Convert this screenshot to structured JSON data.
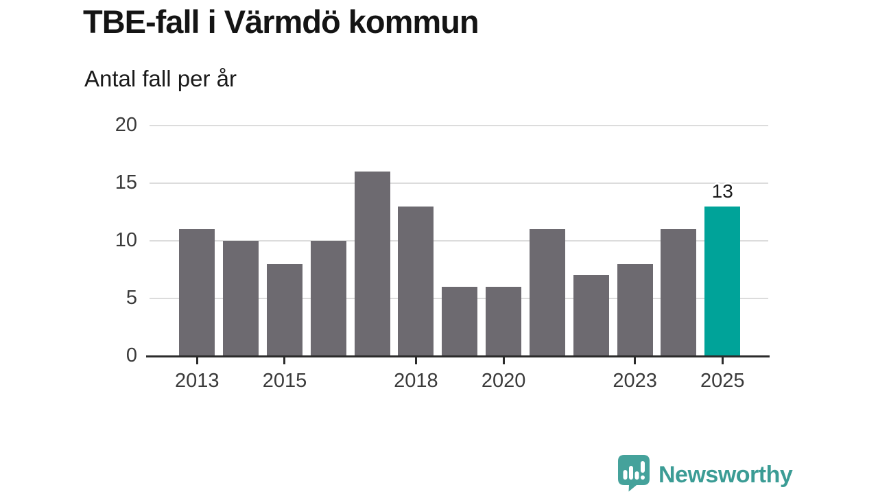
{
  "chart": {
    "title": "TBE-fall i Värmdö kommun",
    "subtitle": "Antal fall per år"
  },
  "footer": {
    "brand": "Newsworthy"
  },
  "colors": {
    "bar": "#6d6a70",
    "highlight": "#00a399",
    "grid": "#dcdcdc",
    "axis": "#2b2b2b",
    "tick_label": "#3a3a3a",
    "annotation": "#1a1a1a",
    "logo": "#3b9c95"
  },
  "chart_data": {
    "type": "bar",
    "title": "TBE-fall i Värmdö kommun",
    "subtitle": "Antal fall per år",
    "xlabel": "",
    "ylabel": "Antal fall per år",
    "categories": [
      "2013",
      "2014",
      "2015",
      "2016",
      "2017",
      "2018",
      "2019",
      "2020",
      "2021",
      "2022",
      "2023",
      "2024",
      "2025"
    ],
    "values": [
      11,
      10,
      8,
      10,
      16,
      13,
      6,
      6,
      11,
      7,
      8,
      11,
      13
    ],
    "highlight_category": "2025",
    "annotations": [
      {
        "category": "2025",
        "text": "13"
      }
    ],
    "x_tick_labels": [
      "2013",
      "2015",
      "2018",
      "2020",
      "2023",
      "2025"
    ],
    "y_ticks": [
      0,
      5,
      10,
      15,
      20
    ],
    "ylim": [
      0,
      20
    ],
    "grid": "horizontal",
    "legend": "none"
  }
}
